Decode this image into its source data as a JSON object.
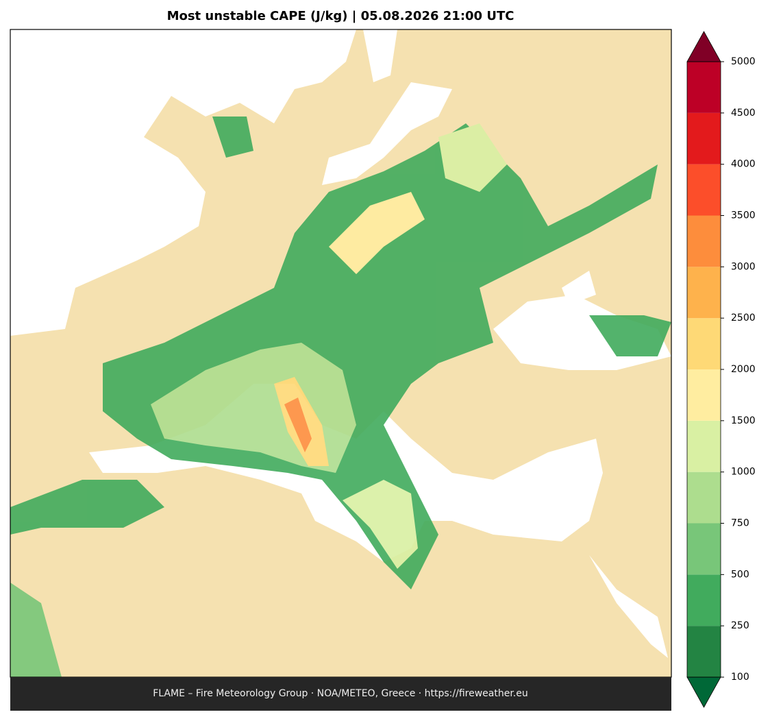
{
  "title": "Most unstable CAPE (J/kg)  |  05.08.2026 21:00 UTC",
  "colorbar": {
    "levels": [
      100,
      250,
      500,
      750,
      1000,
      1500,
      2000,
      2500,
      3000,
      3500,
      4000,
      4500,
      5000
    ],
    "colors": [
      "#238443",
      "#41ab5d",
      "#78c679",
      "#addd8e",
      "#d9f0a3",
      "#ffeda0",
      "#fed976",
      "#feb24c",
      "#fd8d3c",
      "#fc4e2a",
      "#e31a1c",
      "#bd0026"
    ],
    "under_color": "#006837",
    "over_color": "#800026"
  },
  "footer": "FLAME – Fire Meteorology Group · NOA/METEO, Greece · https://fireweather.eu"
}
